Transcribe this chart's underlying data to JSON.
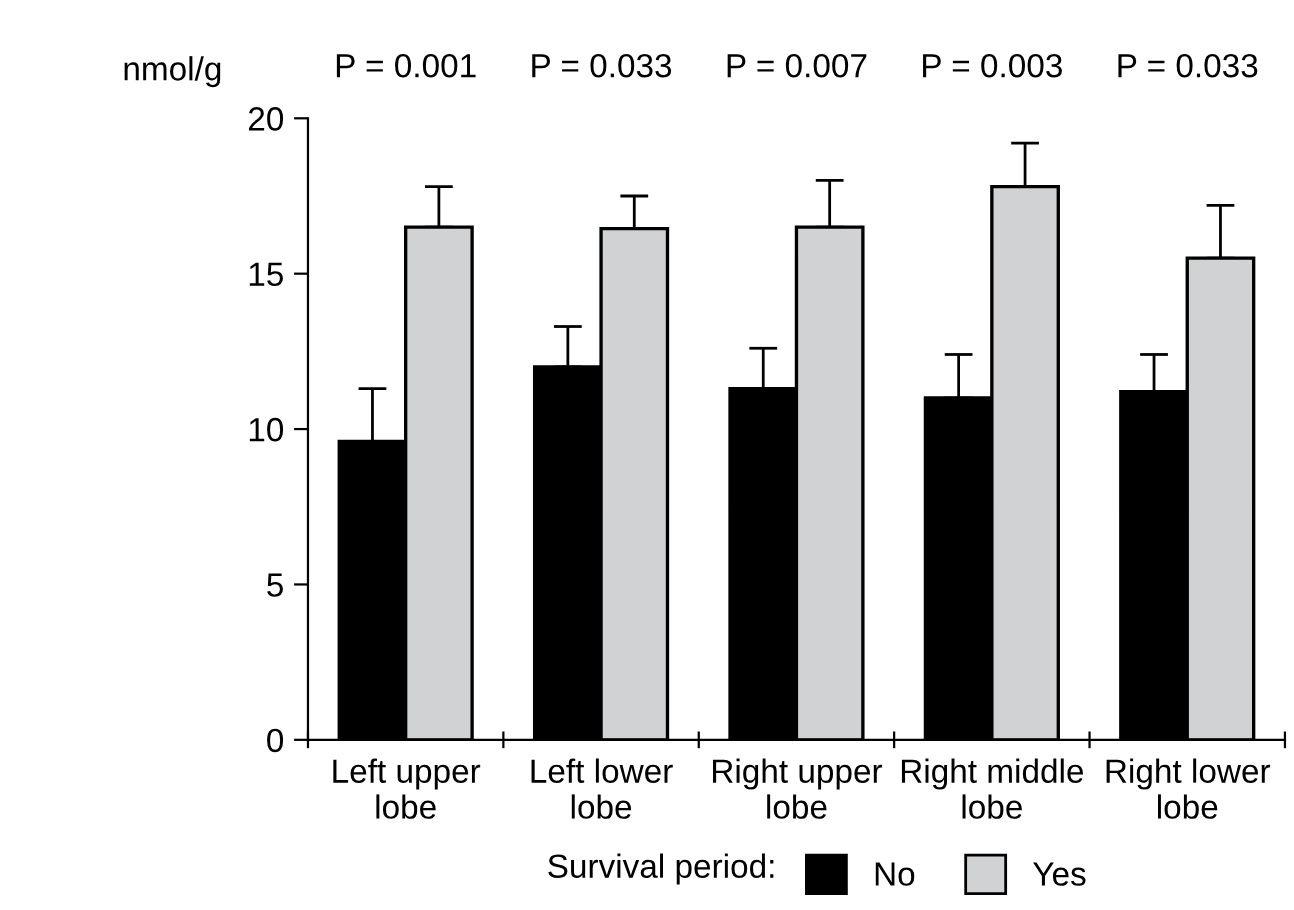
{
  "chart_data": {
    "type": "bar",
    "categories": [
      "Left upper\nlobe",
      "Left lower\nlobe",
      "Right upper\nlobe",
      "Right middle\nlobe",
      "Right lower\nlobe"
    ],
    "series": [
      {
        "name": "No",
        "color": "#000000",
        "values": [
          9.6,
          12.0,
          11.3,
          11.0,
          11.2
        ],
        "errors": [
          [
            9.6,
            11.3
          ],
          [
            12.0,
            13.3
          ],
          [
            11.3,
            12.6
          ],
          [
            11.0,
            12.4
          ],
          [
            11.2,
            12.4
          ]
        ]
      },
      {
        "name": "Yes",
        "color": "#d1d2d4",
        "values": [
          16.5,
          16.45,
          16.5,
          17.8,
          15.5
        ],
        "errors": [
          [
            16.5,
            17.8
          ],
          [
            16.45,
            17.5
          ],
          [
            16.5,
            18.0
          ],
          [
            17.8,
            19.2
          ],
          [
            15.5,
            17.2
          ]
        ]
      }
    ],
    "ylabel": "nmol/g",
    "ylim": [
      0,
      20
    ],
    "yticks": [
      0,
      5,
      10,
      15,
      20
    ],
    "annotations": [
      "P = 0.001",
      "P = 0.033",
      "P = 0.007",
      "P = 0.003",
      "P = 0.033"
    ],
    "legend_title": "Survival period:",
    "legend": "bottom",
    "grid": false
  }
}
